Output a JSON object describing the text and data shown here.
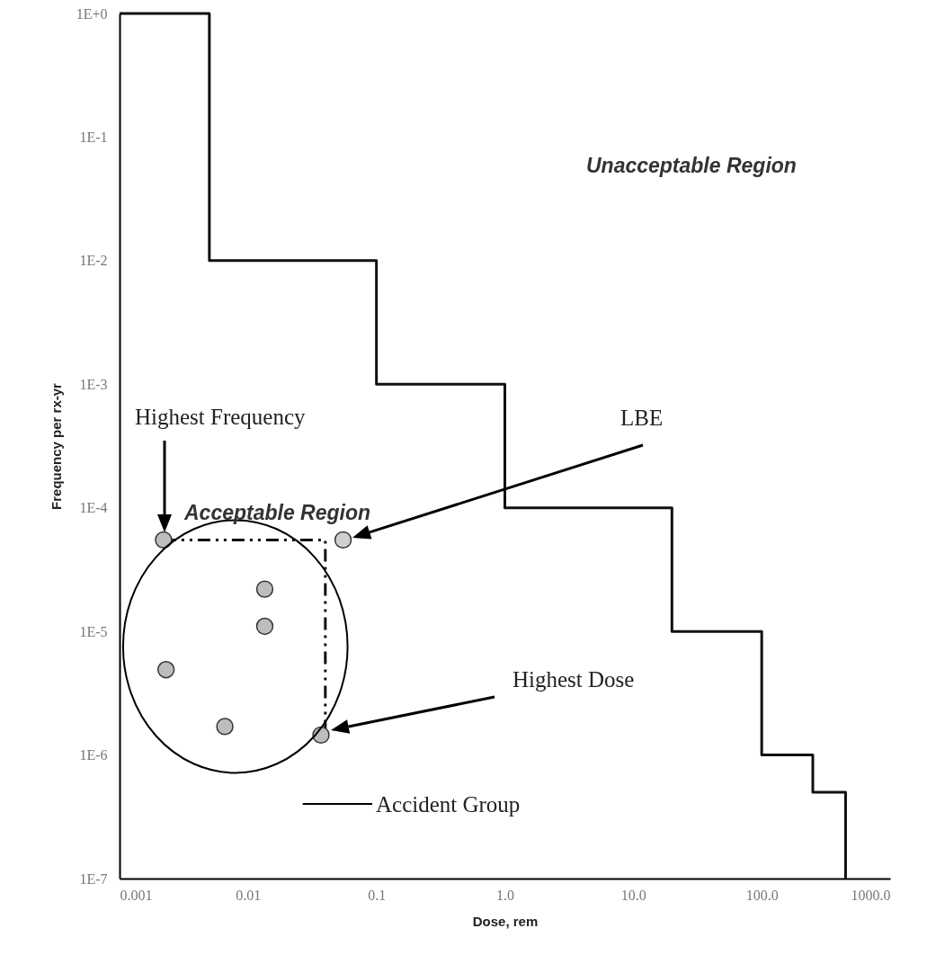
{
  "chart_data": {
    "type": "step",
    "xlabel": "Dose, rem",
    "ylabel": "Frequency per rx-yr",
    "log": "xy",
    "grid": false,
    "xlim": [
      0.001,
      1000
    ],
    "ylim": [
      1e-07,
      1
    ],
    "xticks": [
      0.001,
      0.01,
      0.1,
      {
        "value": 1,
        "label": "1.0"
      },
      {
        "value": 10,
        "label": "10.0"
      },
      {
        "value": 100,
        "label": "100.0"
      },
      {
        "value": 1000,
        "label": "1000.0"
      }
    ],
    "yticks": [
      {
        "value": 1e-07,
        "label": "1E-7"
      },
      {
        "value": 1e-06,
        "label": "1E-6"
      },
      {
        "value": 1e-05,
        "label": "1E-5"
      },
      {
        "value": 0.0001,
        "label": "1E-4"
      },
      {
        "value": 0.001,
        "label": "1E-3"
      },
      {
        "value": 0.01,
        "label": "1E-2"
      },
      {
        "value": 0.1,
        "label": "1E-1"
      },
      {
        "value": 1,
        "label": "1E+0"
      }
    ],
    "series": [
      {
        "color": "#111111",
        "marker": "none",
        "x": [
          0.001,
          0.005,
          0.1,
          1,
          20,
          100,
          250,
          450
        ],
        "values": [
          1,
          0.01,
          0.001,
          0.0001,
          1e-05,
          1e-06,
          5e-07,
          1e-07
        ]
      },
      {
        "type": "line",
        "color": "#111111",
        "line_style": "dashed",
        "marker": "none",
        "x": [
          0.0022,
          0.04,
          0.04
        ],
        "values": [
          5.5e-05,
          5.5e-05,
          1.45e-06
        ]
      },
      {
        "type": "scatter",
        "color": "#bdbdbd",
        "marker": "circle",
        "x": [
          0.0022,
          0.0135,
          0.0135,
          0.0023,
          0.0066,
          0.037
        ],
        "values": [
          5.5e-05,
          2.2e-05,
          1.1e-05,
          4.9e-06,
          1.7e-06,
          1.45e-06
        ]
      },
      {
        "type": "scatter",
        "color": "#d0d0d0",
        "marker": "circle",
        "x": [
          0.055
        ],
        "values": [
          5.5e-05
        ]
      }
    ],
    "annotations": [
      "Unacceptable Region",
      "Acceptable Region",
      "Highest Frequency",
      "LBE",
      "Highest Dose",
      "Accident Group"
    ]
  }
}
